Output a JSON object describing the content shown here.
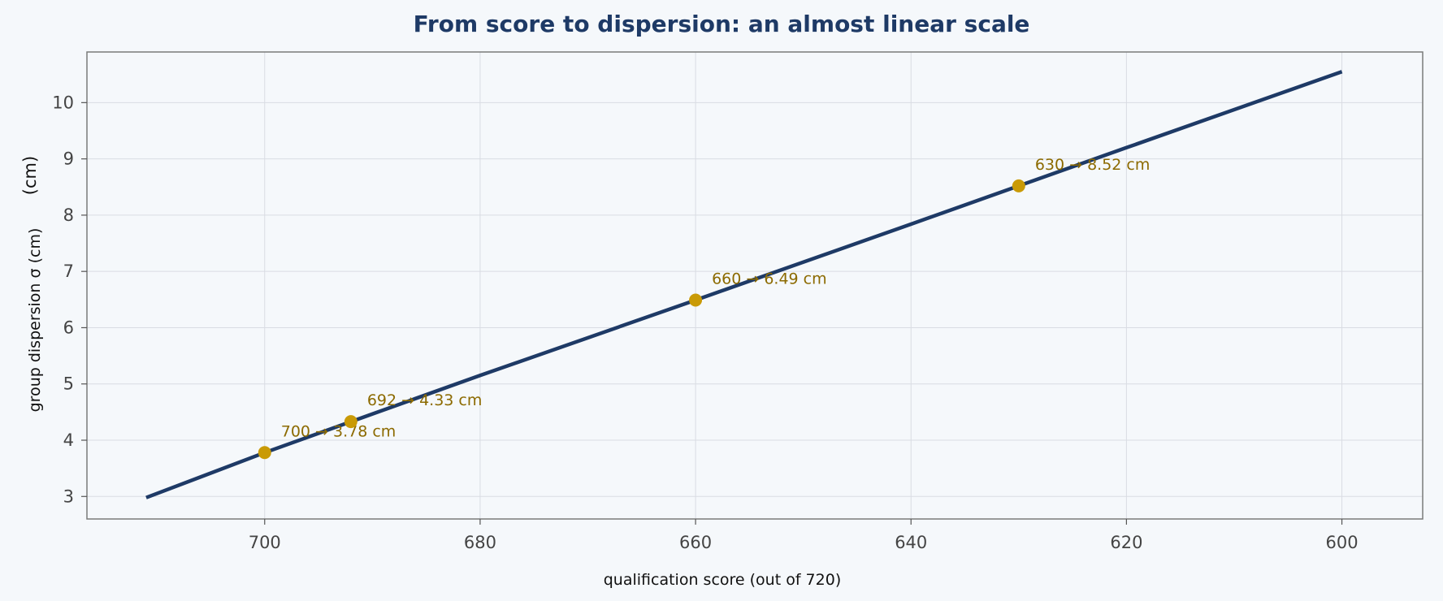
{
  "chart_data": {
    "type": "line",
    "title": "From score to dispersion: an almost linear scale",
    "xlabel": "qualification score (out of 720)",
    "ylabel": "group dispersion σ (cm)",
    "ylabel_extra": "(cm)",
    "x_inverted": true,
    "xlim": [
      716.5,
      592.5
    ],
    "ylim": [
      2.6,
      10.9
    ],
    "grid": true,
    "x_ticks": [
      700,
      680,
      660,
      640,
      620,
      600
    ],
    "y_ticks": [
      3,
      4,
      5,
      6,
      7,
      8,
      9,
      10
    ],
    "series": [
      {
        "x": [
          711,
          700,
          692,
          680,
          660,
          640,
          630,
          620,
          600
        ],
        "y": [
          2.98,
          3.78,
          4.33,
          5.15,
          6.49,
          7.84,
          8.52,
          9.2,
          10.55
        ]
      }
    ],
    "highlights": [
      {
        "x": 700,
        "y": 3.78,
        "label": "700 → 3.78 cm"
      },
      {
        "x": 692,
        "y": 4.33,
        "label": "692 → 4.33 cm"
      },
      {
        "x": 660,
        "y": 6.49,
        "label": "660 → 6.49 cm"
      },
      {
        "x": 630,
        "y": 8.52,
        "label": "630 → 8.52 cm"
      }
    ],
    "colors": {
      "line": "#1e3a66",
      "marker": "#c99a06",
      "annotation": "#8c6a00",
      "title": "#1e3a66"
    }
  }
}
